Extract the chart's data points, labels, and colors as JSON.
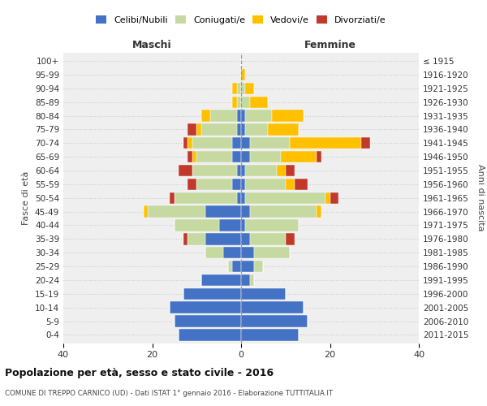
{
  "age_groups": [
    "0-4",
    "5-9",
    "10-14",
    "15-19",
    "20-24",
    "25-29",
    "30-34",
    "35-39",
    "40-44",
    "45-49",
    "50-54",
    "55-59",
    "60-64",
    "65-69",
    "70-74",
    "75-79",
    "80-84",
    "85-89",
    "90-94",
    "95-99",
    "100+"
  ],
  "birth_years": [
    "2011-2015",
    "2006-2010",
    "2001-2005",
    "1996-2000",
    "1991-1995",
    "1986-1990",
    "1981-1985",
    "1976-1980",
    "1971-1975",
    "1966-1970",
    "1961-1965",
    "1956-1960",
    "1951-1955",
    "1946-1950",
    "1941-1945",
    "1936-1940",
    "1931-1935",
    "1926-1930",
    "1921-1925",
    "1916-1920",
    "≤ 1915"
  ],
  "maschi": {
    "celibi": [
      14,
      15,
      16,
      13,
      9,
      2,
      4,
      8,
      5,
      8,
      1,
      2,
      1,
      2,
      2,
      1,
      1,
      0,
      0,
      0,
      0
    ],
    "coniugati": [
      0,
      0,
      0,
      0,
      0,
      1,
      4,
      4,
      10,
      13,
      14,
      8,
      10,
      8,
      9,
      8,
      6,
      1,
      1,
      0,
      0
    ],
    "vedovi": [
      0,
      0,
      0,
      0,
      0,
      0,
      0,
      0,
      0,
      1,
      0,
      0,
      0,
      1,
      1,
      1,
      2,
      1,
      1,
      0,
      0
    ],
    "divorziati": [
      0,
      0,
      0,
      0,
      0,
      0,
      0,
      1,
      0,
      0,
      1,
      2,
      3,
      1,
      1,
      2,
      0,
      0,
      0,
      0,
      0
    ]
  },
  "femmine": {
    "nubili": [
      13,
      15,
      14,
      10,
      2,
      3,
      3,
      2,
      1,
      2,
      1,
      1,
      1,
      2,
      2,
      1,
      1,
      0,
      0,
      0,
      0
    ],
    "coniugate": [
      0,
      0,
      0,
      0,
      1,
      2,
      8,
      8,
      12,
      15,
      18,
      9,
      7,
      7,
      9,
      5,
      6,
      2,
      1,
      0,
      0
    ],
    "vedove": [
      0,
      0,
      0,
      0,
      0,
      0,
      0,
      0,
      0,
      1,
      1,
      2,
      2,
      8,
      16,
      7,
      7,
      4,
      2,
      1,
      0
    ],
    "divorziate": [
      0,
      0,
      0,
      0,
      0,
      0,
      0,
      2,
      0,
      0,
      2,
      3,
      2,
      1,
      2,
      0,
      0,
      0,
      0,
      0,
      0
    ]
  },
  "color_celibi": "#4472c4",
  "color_coniugati": "#c5d9a0",
  "color_vedovi": "#ffc000",
  "color_divorziati": "#c0392b",
  "title": "Popolazione per età, sesso e stato civile - 2016",
  "subtitle": "COMUNE DI TREPPO CARNICO (UD) - Dati ISTAT 1° gennaio 2016 - Elaborazione TUTTITALIA.IT",
  "ylabel_left": "Fasce di età",
  "ylabel_right": "Anni di nascita",
  "xlabel_maschi": "Maschi",
  "xlabel_femmine": "Femmine",
  "xlim": 40,
  "bg_color": "#ffffff",
  "plot_bg": "#efefef",
  "grid_color": "#cccccc"
}
